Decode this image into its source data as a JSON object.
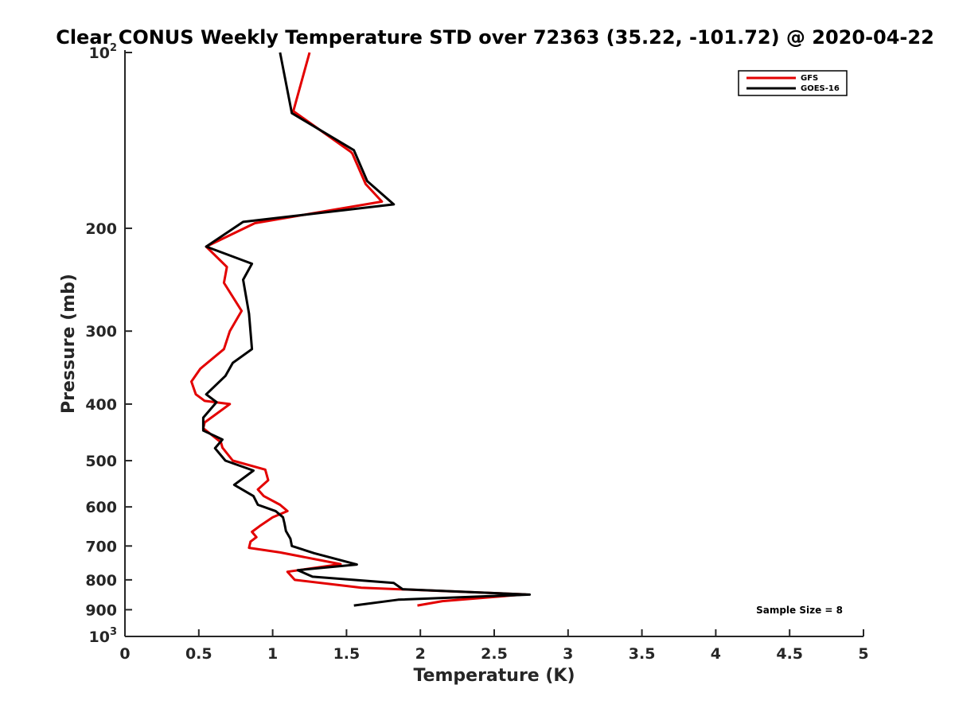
{
  "chart_data": {
    "type": "line",
    "title": "Clear CONUS Weekly Temperature STD over 72363 (35.22, -101.72) @ 2020-04-22",
    "xlabel": "Temperature (K)",
    "ylabel": "Pressure (mb)",
    "xlim": [
      0,
      5
    ],
    "ylim": [
      100,
      1000
    ],
    "yscale": "log",
    "yreversed": true,
    "grid": false,
    "x_ticks": [
      "0",
      "0.5",
      "1",
      "1.5",
      "2",
      "2.5",
      "3",
      "3.5",
      "4",
      "4.5",
      "5"
    ],
    "x_tick_values": [
      0,
      0.5,
      1,
      1.5,
      2,
      2.5,
      3,
      3.5,
      4,
      4.5,
      5
    ],
    "y_ticks": [
      {
        "value": 100,
        "label": "10",
        "sup": "2"
      },
      {
        "value": 200,
        "label": "200"
      },
      {
        "value": 300,
        "label": "300"
      },
      {
        "value": 400,
        "label": "400"
      },
      {
        "value": 500,
        "label": "500"
      },
      {
        "value": 600,
        "label": "600"
      },
      {
        "value": 700,
        "label": "700"
      },
      {
        "value": 800,
        "label": "800"
      },
      {
        "value": 900,
        "label": "900"
      },
      {
        "value": 1000,
        "label": "10",
        "sup": "3"
      }
    ],
    "legend_position": "top-right",
    "annotation": "Sample Size = 8",
    "series": [
      {
        "name": "GFS",
        "color": "#e30000",
        "x": [
          1.25,
          1.14,
          1.53,
          1.54,
          1.63,
          1.74,
          0.88,
          0.55,
          0.69,
          0.67,
          0.79,
          0.71,
          0.67,
          0.51,
          0.45,
          0.48,
          0.54,
          0.71,
          0.54,
          0.53,
          0.65,
          0.66,
          0.73,
          0.95,
          0.97,
          0.9,
          0.94,
          1.05,
          1.1,
          1.0,
          0.92,
          0.86,
          0.89,
          0.85,
          0.84,
          1.05,
          1.46,
          1.1,
          1.15,
          1.6,
          2.71,
          2.15,
          1.98
        ],
        "y": [
          100,
          126,
          148,
          149,
          168,
          180,
          196,
          215,
          233,
          248,
          277,
          300,
          322,
          348,
          366,
          385,
          395,
          400,
          430,
          440,
          465,
          475,
          500,
          518,
          540,
          560,
          575,
          595,
          610,
          625,
          645,
          662,
          676,
          688,
          705,
          718,
          752,
          775,
          800,
          825,
          847,
          870,
          885
        ]
      },
      {
        "name": "GOES-16",
        "color": "#000000",
        "x": [
          1.05,
          1.13,
          1.55,
          1.64,
          1.82,
          0.8,
          0.55,
          0.86,
          0.8,
          0.84,
          0.86,
          0.73,
          0.68,
          0.55,
          0.62,
          0.53,
          0.53,
          0.66,
          0.61,
          0.68,
          0.87,
          0.74,
          0.87,
          0.9,
          1.02,
          1.07,
          1.08,
          1.09,
          1.12,
          1.13,
          1.28,
          1.57,
          1.17,
          1.27,
          1.82,
          1.88,
          2.74,
          1.85,
          1.55
        ],
        "y": [
          100,
          127,
          147,
          166,
          182,
          195,
          215,
          230,
          245,
          280,
          322,
          340,
          358,
          385,
          397,
          422,
          444,
          460,
          476,
          500,
          520,
          550,
          575,
          595,
          610,
          625,
          640,
          660,
          680,
          700,
          720,
          753,
          770,
          790,
          810,
          830,
          848,
          865,
          885
        ]
      }
    ]
  }
}
